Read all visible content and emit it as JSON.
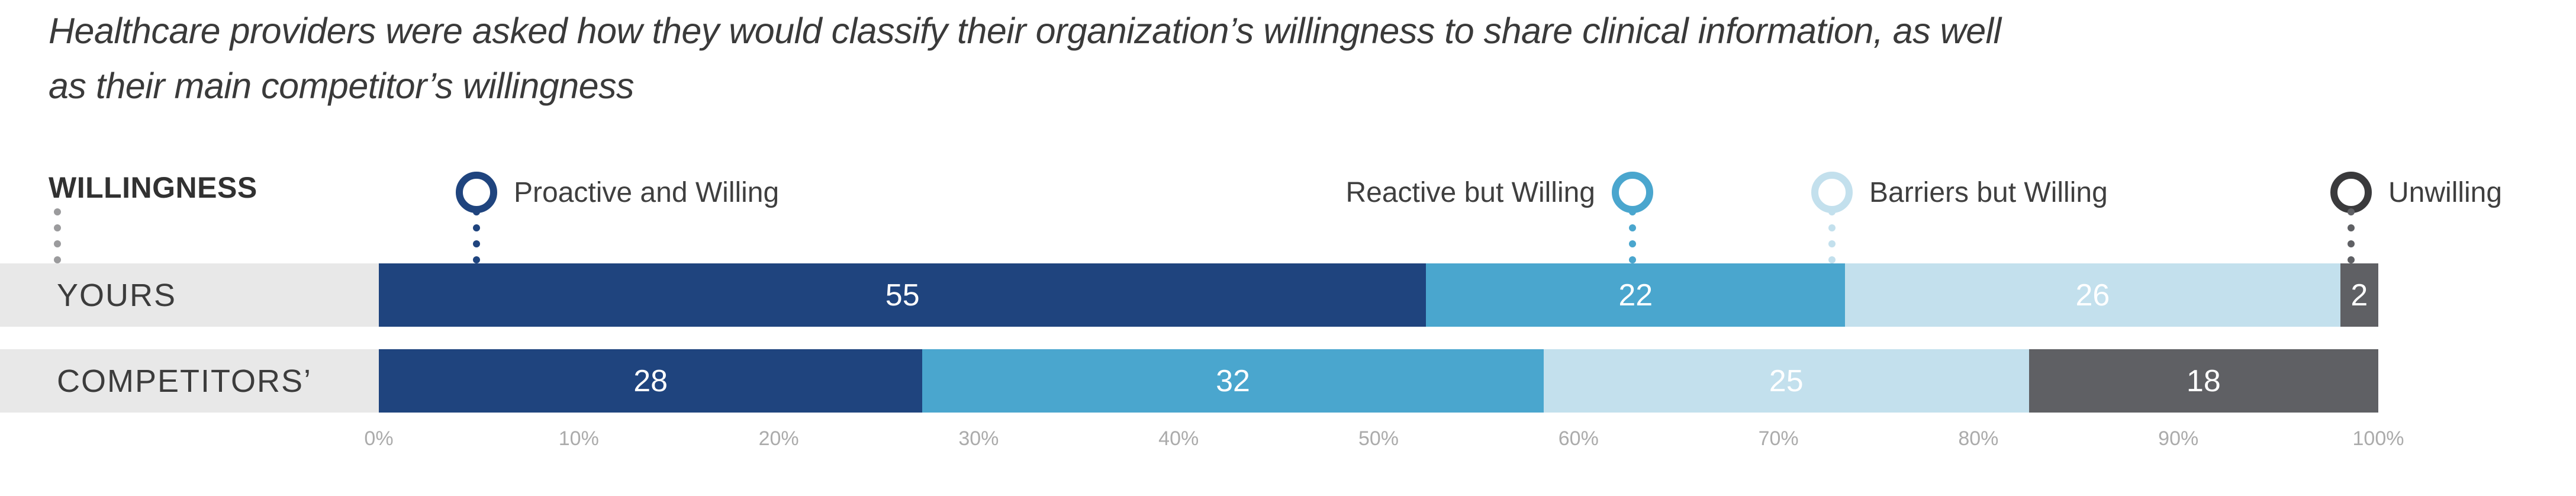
{
  "title": {
    "line1": "Healthcare providers were asked how they would classify their organization’s willingness to share clinical information, as well",
    "line2": "as their main competitor’s willingness"
  },
  "legend": {
    "heading": "WILLINGNESS",
    "items": [
      {
        "label": "Proactive and Willing",
        "color": "#1F447E",
        "circle_side": "left"
      },
      {
        "label": "Reactive but Willing",
        "color": "#4AA6CE",
        "circle_side": "right"
      },
      {
        "label": "Barriers but Willing",
        "color": "#C3E0ED",
        "circle_side": "left"
      },
      {
        "label": "Unwilling",
        "color": "#3A3A3C",
        "circle_side": "left"
      }
    ]
  },
  "chart_data": {
    "type": "bar",
    "variant": "stacked-horizontal-100pct",
    "title": "Healthcare providers were asked how they would classify their organization’s willingness to share clinical information, as well as their main competitor’s willingness",
    "categories": [
      "YOURS",
      "COMPETITORS’"
    ],
    "segments": [
      "Proactive and Willing",
      "Reactive but Willing",
      "Barriers but Willing",
      "Unwilling"
    ],
    "series": [
      {
        "name": "YOURS",
        "values": [
          55,
          22,
          26,
          2
        ]
      },
      {
        "name": "COMPETITORS’",
        "values": [
          28,
          32,
          25,
          18
        ]
      }
    ],
    "colors": [
      "#1F447E",
      "#4AA6CE",
      "#C3E0ED",
      "#5F6064"
    ],
    "value_labels_shown": true,
    "value_label_color": "#FFFFFF",
    "x_axis_ticks": [
      "0%",
      "10%",
      "20%",
      "30%",
      "40%",
      "50%",
      "60%",
      "70%",
      "80%",
      "90%",
      "100%"
    ],
    "xlim": [
      0,
      100
    ],
    "legend_position": "top",
    "grid": false
  },
  "colors": {
    "row_label_background": "#E8E8E8",
    "row_label_text": "#3C3C3C",
    "axis_tick_text": "#ABABAB",
    "title_text": "#3A3A3A",
    "willingness_connector": "#9B9B9D",
    "unwilling_segment": "#5F6064"
  }
}
